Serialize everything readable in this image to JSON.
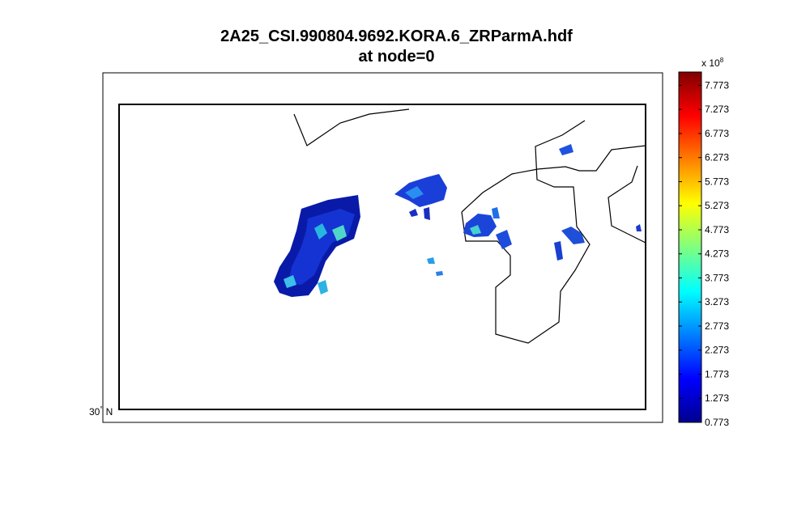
{
  "chart_data": {
    "type": "heatmap",
    "title_line1": "2A25_CSI.990804.9692.KORA.6_ZRParmA.hdf",
    "title_line2": "at node=0",
    "map_ticks": {
      "lat_label": "30",
      "degree_symbol": "°",
      "hemisphere": "N"
    },
    "colorbar": {
      "multiplier_text": "x 10",
      "multiplier_exponent": "8",
      "tick_labels": [
        "0.773",
        "1.273",
        "1.773",
        "2.273",
        "2.773",
        "3.273",
        "3.773",
        "4.273",
        "4.773",
        "5.273",
        "5.773",
        "6.273",
        "6.773",
        "7.273",
        "7.773"
      ],
      "range": [
        0.773,
        8.05
      ],
      "colormap": "jet"
    },
    "colors": {
      "low": "#00008f",
      "mid_low": "#0f28c8",
      "cyan": "#22c8e6",
      "green": "#7bd25a",
      "coast": "#000000"
    }
  }
}
